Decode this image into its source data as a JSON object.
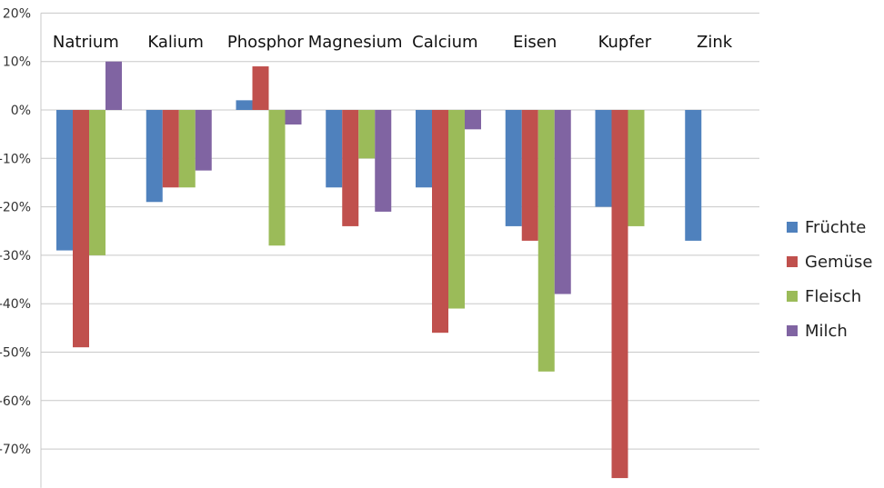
{
  "chart_data": {
    "type": "bar",
    "title": "",
    "xlabel": "",
    "ylabel": "",
    "categories": [
      "Natrium",
      "Kalium",
      "Phosphor",
      "Magnesium",
      "Calcium",
      "Eisen",
      "Kupfer",
      "Zink"
    ],
    "y_ticks": [
      "20%",
      "10%",
      "0%",
      "-10%",
      "-20%",
      "-30%",
      "-40%",
      "-50%",
      "-60%",
      "-70%"
    ],
    "ylim": [
      -78,
      20
    ],
    "grid": true,
    "legend_position": "right",
    "category_labels_position": "top",
    "series": [
      {
        "name": "Früchte",
        "color": "#4f81bd",
        "values": [
          -29,
          -19,
          2,
          -16,
          -16,
          -24,
          -20,
          -27
        ]
      },
      {
        "name": "Gemüse",
        "color": "#c0504d",
        "values": [
          -49,
          -16,
          9,
          -24,
          -46,
          -27,
          -76,
          null
        ]
      },
      {
        "name": "Fleisch",
        "color": "#9bbb59",
        "values": [
          -30,
          -16,
          -28,
          -10,
          -41,
          -54,
          -24,
          null
        ]
      },
      {
        "name": "Milch",
        "color": "#8064a2",
        "values": [
          10,
          -12.5,
          -3,
          -21,
          -4,
          -38,
          null,
          null
        ]
      }
    ]
  }
}
